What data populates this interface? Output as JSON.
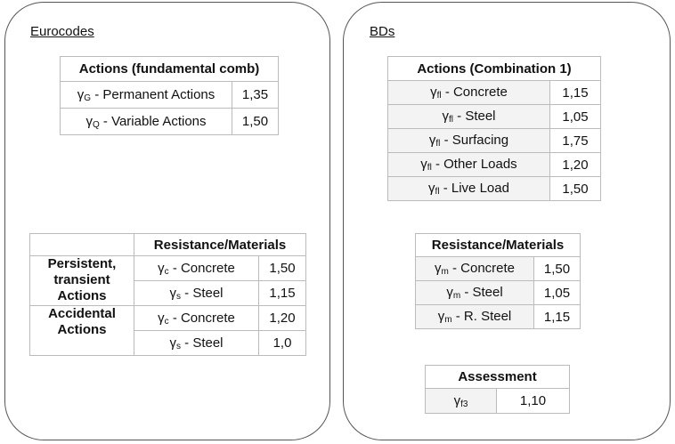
{
  "eurocodes": {
    "title": "Eurocodes",
    "actions": {
      "header": "Actions (fundamental comb)",
      "rows": [
        {
          "symbol": "γ",
          "sub": "G",
          "label": "- Permanent Actions",
          "value": "1,35"
        },
        {
          "symbol": "γ",
          "sub": "Q",
          "label": "- Variable Actions",
          "value": "1,50"
        }
      ]
    },
    "resistance": {
      "header": "Resistance/Materials",
      "groups": [
        {
          "label": "Persistent, transient Actions",
          "rows": [
            {
              "symbol": "γ",
              "sub": "c",
              "label": "- Concrete",
              "value": "1,50"
            },
            {
              "symbol": "γ",
              "sub": "s",
              "label": "- Steel",
              "value": "1,15"
            }
          ]
        },
        {
          "label": "Accidental Actions",
          "rows": [
            {
              "symbol": "γ",
              "sub": "c",
              "label": "- Concrete",
              "value": "1,20"
            },
            {
              "symbol": "γ",
              "sub": "s",
              "label": "- Steel",
              "value": "1,0"
            }
          ]
        }
      ]
    }
  },
  "bds": {
    "title": "BDs",
    "actions": {
      "header": "Actions (Combination 1)",
      "rows": [
        {
          "symbol": "γ",
          "sub": "fl",
          "label": "- Concrete",
          "value": "1,15"
        },
        {
          "symbol": "γ",
          "sub": "fl",
          "label": "- Steel",
          "value": "1,05"
        },
        {
          "symbol": "γ",
          "sub": "fl",
          "label": "- Surfacing",
          "value": "1,75"
        },
        {
          "symbol": "γ",
          "sub": "fl",
          "label": "- Other Loads",
          "value": "1,20"
        },
        {
          "symbol": "γ",
          "sub": "fl",
          "label": "- Live Load",
          "value": "1,50"
        }
      ]
    },
    "resistance": {
      "header": "Resistance/Materials",
      "rows": [
        {
          "symbol": "γ",
          "sub": "m",
          "label": "- Concrete",
          "value": "1,50"
        },
        {
          "symbol": "γ",
          "sub": "m",
          "label": "- Steel",
          "value": "1,05"
        },
        {
          "symbol": "γ",
          "sub": "m",
          "label": "- R. Steel",
          "value": "1,15"
        }
      ]
    },
    "assessment": {
      "header": "Assessment",
      "rows": [
        {
          "symbol": "γ",
          "sub": "f3",
          "value": "1,10"
        }
      ]
    }
  }
}
